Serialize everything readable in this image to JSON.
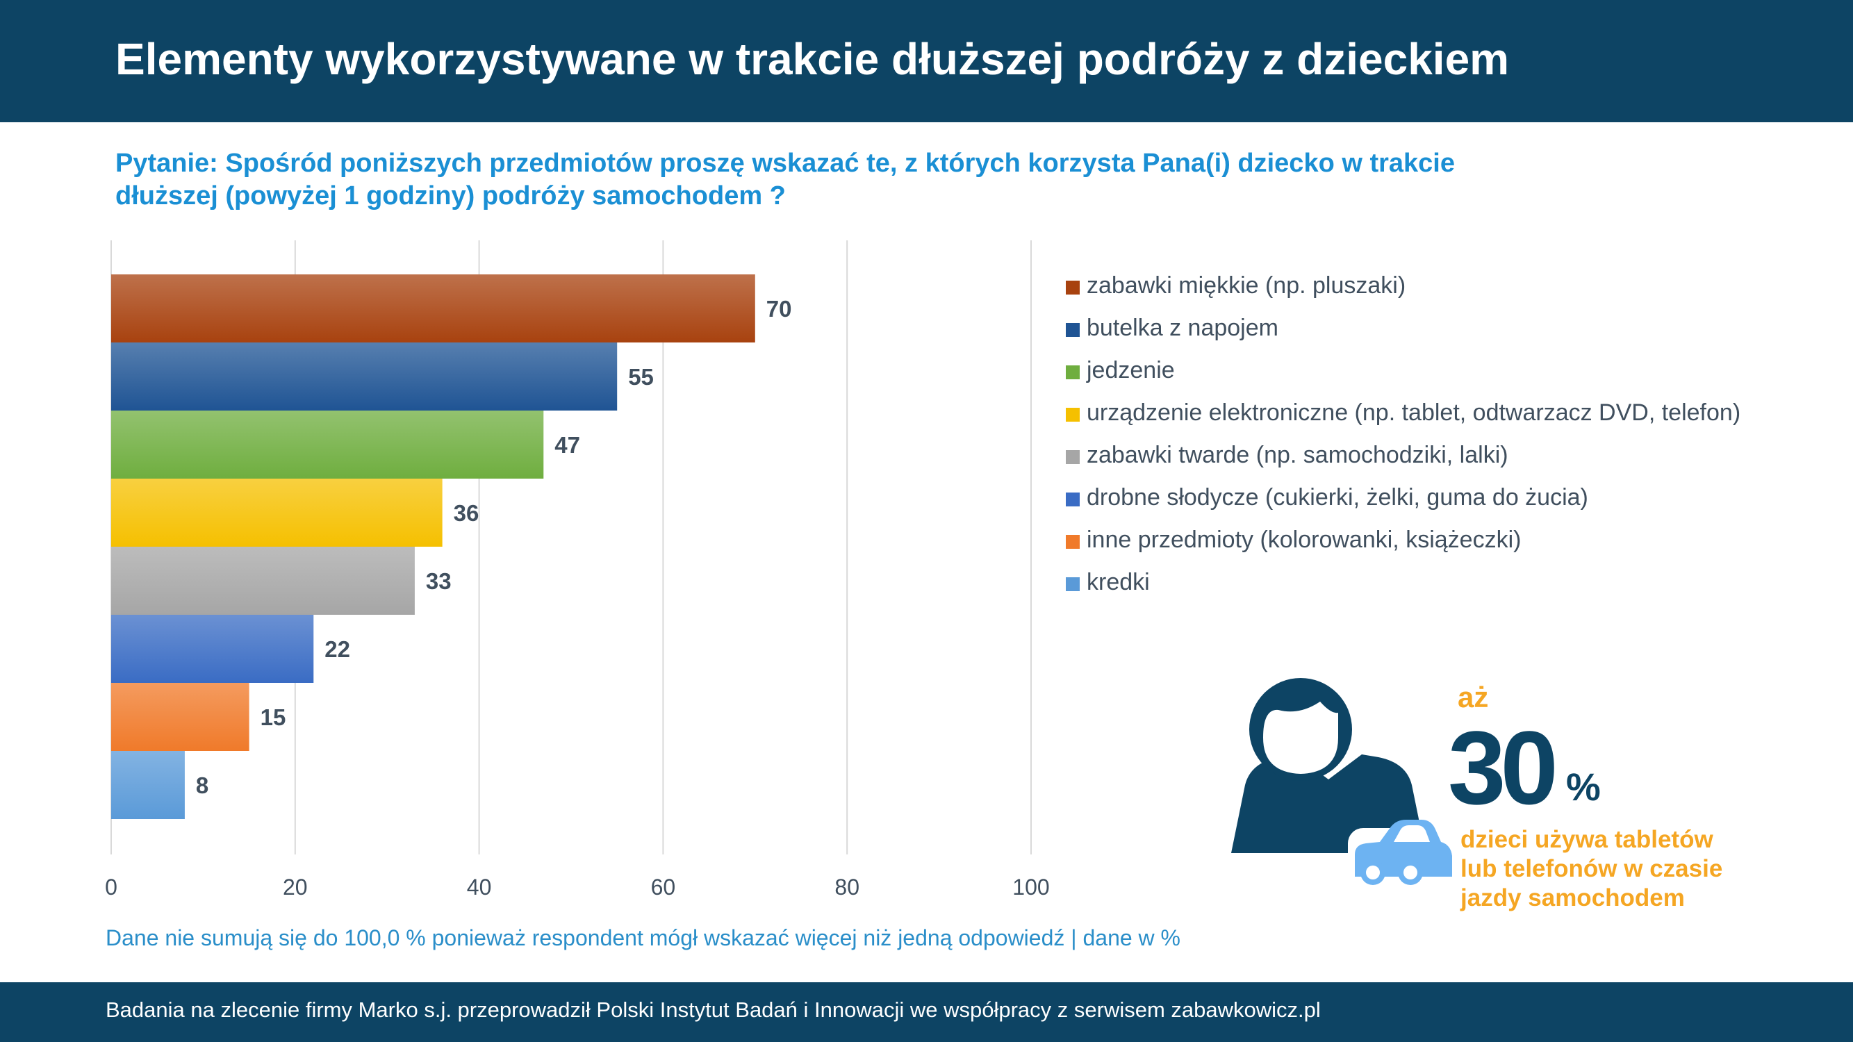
{
  "header": {
    "title": "Elementy wykorzystywane w trakcie dłuższej podróży z dzieckiem"
  },
  "question": "Pytanie: Spośród poniższych przedmiotów proszę wskazać te, z których korzysta Pana(i) dziecko w trakcie dłuższej (powyżej 1 godziny) podróży samochodem ?",
  "note": "Dane nie sumują się do 100,0 % ponieważ respondent mógł wskazać więcej niż jedną odpowiedź  |  dane w %",
  "footer": {
    "text": "Badania na zlecenie firmy Marko s.j. przeprowadził Polski Instytut Badań i Innowacji we współpracy z serwisem zabawkowicz.pl"
  },
  "stat": {
    "prefix": "aż",
    "number": "30",
    "unit": "%",
    "caption": "dzieci używa tabletów lub telefonów w czasie jazdy samochodem"
  },
  "icons": [
    "child-avatar-icon",
    "car-icon"
  ],
  "chart_data": {
    "type": "bar",
    "orientation": "horizontal",
    "categories": [
      "zabawki miękkie (np. pluszaki)",
      "butelka z napojem",
      "jedzenie",
      "urządzenie elektroniczne (np. tablet, odtwarzacz DVD, telefon)",
      "zabawki twarde (np. samochodziki, lalki)",
      "drobne słodycze (cukierki, żelki, guma do żucia)",
      "inne przedmioty (kolorowanki, książeczki)",
      "kredki"
    ],
    "values": [
      70,
      55,
      47,
      36,
      33,
      22,
      15,
      8
    ],
    "colors": [
      "#a8420f",
      "#1f5494",
      "#6fae3f",
      "#f5c000",
      "#a6a6a6",
      "#3a6cc4",
      "#f07a2a",
      "#5a9ad8"
    ],
    "xlim": [
      0,
      100
    ],
    "xticks": [
      0,
      20,
      40,
      60,
      80,
      100
    ],
    "grid": true,
    "legend": "right",
    "data_labels": true
  },
  "colors": {
    "header_bg": "#0d4464",
    "question": "#1a8fd4",
    "accent_orange": "#f5a623",
    "car_blue": "#6db3f2"
  }
}
